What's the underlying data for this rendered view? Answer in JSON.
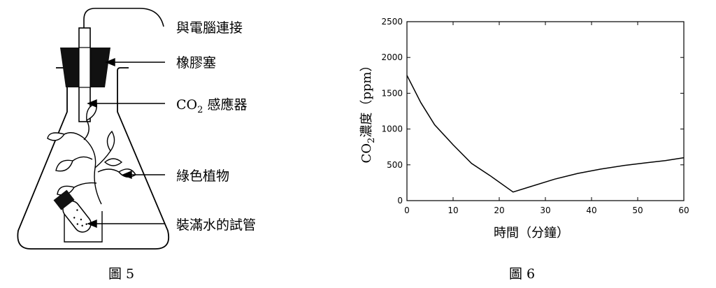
{
  "figure5": {
    "caption": "圖 5",
    "labels": {
      "computer": "與電腦連接",
      "stopper": "橡膠塞",
      "sensor": "CO",
      "sensor_sub": "2",
      "sensor_rest": " 感應器",
      "plant": "綠色植物",
      "tube": "裝滿水的試管"
    }
  },
  "figure6": {
    "caption": "圖 6"
  },
  "chart_data": {
    "type": "line",
    "xlabel": "時間（分鐘）",
    "ylabel_main": "CO",
    "ylabel_sub": "2",
    "ylabel_rest": "濃度（ppm）",
    "xlim": [
      0,
      60
    ],
    "ylim": [
      0,
      2500
    ],
    "xticks": [
      0,
      10,
      20,
      30,
      40,
      50,
      60
    ],
    "yticks": [
      0,
      500,
      1000,
      1500,
      2000,
      2500
    ],
    "grid": false,
    "series": [
      {
        "x": [
          0,
          3,
          6,
          10,
          14,
          18,
          23,
          27,
          32,
          37,
          42,
          47,
          52,
          56,
          60
        ],
        "y": [
          1750,
          1370,
          1060,
          780,
          520,
          350,
          120,
          200,
          300,
          380,
          440,
          490,
          530,
          560,
          600
        ]
      }
    ]
  }
}
